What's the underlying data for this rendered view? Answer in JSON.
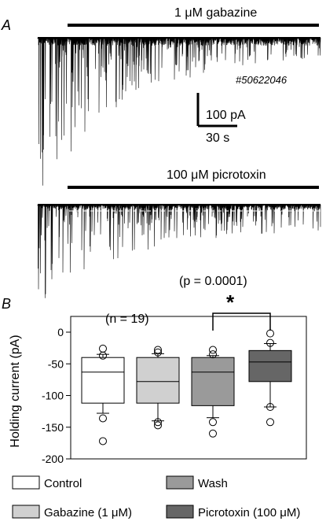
{
  "panel_a": {
    "label": "A",
    "trace1_drug": "1 μM gabazine",
    "trace2_drug": "100 μM picrotoxin",
    "cell_id": "#50622046",
    "scale_y": "100 pA",
    "scale_x": "30 s"
  },
  "panel_b": {
    "label": "B",
    "n_note": "(n = 19)",
    "p_note": "(p = 0.0001)",
    "sig_marker": "*"
  },
  "chart_data": {
    "type": "box",
    "ylabel": "Holding current (pA)",
    "ylim": [
      -200,
      0
    ],
    "yticks": [
      0,
      -50,
      -100,
      -150,
      -200
    ],
    "groups": [
      {
        "name": "Control",
        "color": "#ffffff",
        "whisker_low": -128,
        "q1": -112,
        "median": -63,
        "q3": -40,
        "whisker_high": -35,
        "outliers": [
          -172,
          -136,
          -37,
          -26
        ]
      },
      {
        "name": "Gabazine (1 μM)",
        "color": "#d0d0d0",
        "whisker_low": -140,
        "q1": -112,
        "median": -78,
        "q3": -40,
        "whisker_high": -34,
        "outliers": [
          -147,
          -142,
          -32,
          -28
        ]
      },
      {
        "name": "Wash",
        "color": "#9a9a9a",
        "whisker_low": -135,
        "q1": -116,
        "median": -63,
        "q3": -40,
        "whisker_high": -37,
        "outliers": [
          -160,
          -142,
          -35,
          -28
        ]
      },
      {
        "name": "Picrotoxin (100 μM)",
        "color": "#666666",
        "whisker_low": -118,
        "q1": -78,
        "median": -47,
        "q3": -29,
        "whisker_high": -18,
        "outliers": [
          -142,
          -118,
          -17,
          -2
        ]
      }
    ]
  }
}
